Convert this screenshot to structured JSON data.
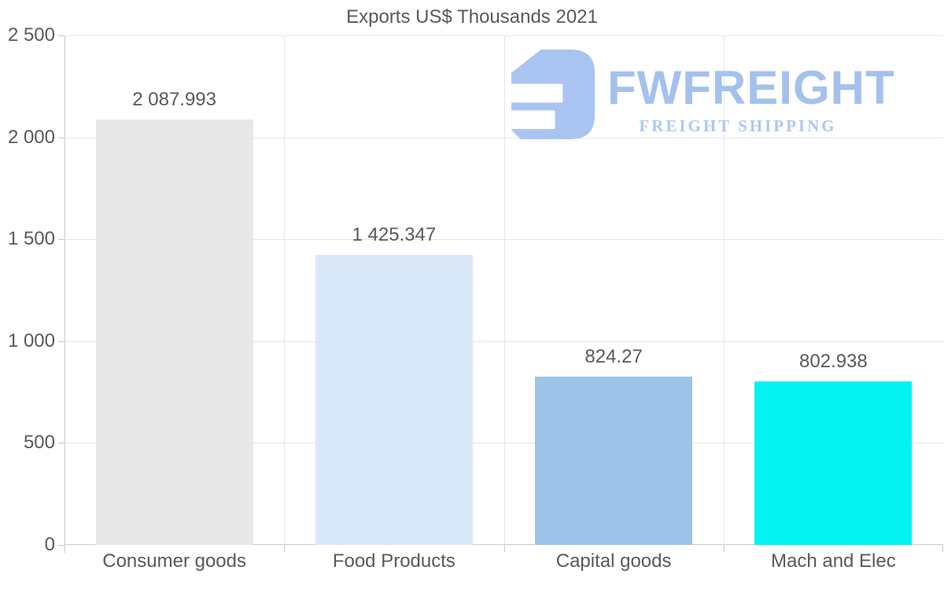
{
  "title": "Exports US$ Thousands 2021",
  "logo": {
    "name": "FWFREIGHT",
    "tagline": "FREIGHT SHIPPING",
    "icon": "fwfreight-mark-icon",
    "mark_color": "#a9c4f0",
    "name_color": "#a4c1ee",
    "tagline_color": "#aec7f1"
  },
  "colors": {
    "text": "#595959",
    "grid": "#e6e6e6",
    "axis": "#c9c9c9",
    "background": "#ffffff"
  },
  "chart_data": {
    "type": "bar",
    "title": "Exports US$ Thousands 2021",
    "categories": [
      "Consumer goods",
      "Food Products",
      "Capital goods",
      "Mach and Elec"
    ],
    "values": [
      2087.993,
      1425.347,
      824.27,
      802.938
    ],
    "value_labels": [
      "2 087.993",
      "1 425.347",
      "824.27",
      "802.938"
    ],
    "bar_colors": [
      "#e8e8e8",
      "#d9e8f8",
      "#9dc3e8",
      "#04f2f2"
    ],
    "xlabel": "",
    "ylabel": "",
    "ylim": [
      0,
      2500
    ],
    "yticks": [
      0,
      500,
      1000,
      1500,
      2000,
      2500
    ],
    "ytick_labels": [
      "0",
      "500",
      "1 000",
      "1 500",
      "2 000",
      "2 500"
    ],
    "grid": true,
    "legend": false
  }
}
